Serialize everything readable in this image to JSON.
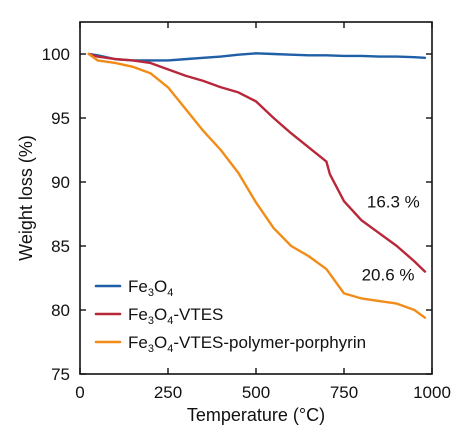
{
  "chart_data": {
    "type": "line",
    "title": "",
    "xlabel": "Temperature (°C)",
    "ylabel": "Weight loss (%)",
    "xlim": [
      0,
      1000
    ],
    "ylim": [
      75,
      102.5
    ],
    "xticks": [
      0,
      250,
      500,
      750,
      1000
    ],
    "yticks": [
      75,
      80,
      85,
      90,
      95,
      100
    ],
    "grid": false,
    "legend_placement": "bottom-left",
    "series": [
      {
        "name": "Fe3O4",
        "legend_parts": [
          {
            "text": "Fe",
            "sub": false
          },
          {
            "text": "3",
            "sub": true
          },
          {
            "text": "O",
            "sub": false
          },
          {
            "text": "4",
            "sub": true
          }
        ],
        "color": "#1f5fa8",
        "x": [
          25,
          50,
          100,
          150,
          200,
          250,
          300,
          350,
          400,
          450,
          500,
          550,
          600,
          650,
          700,
          750,
          800,
          850,
          900,
          950,
          980
        ],
        "y": [
          100.0,
          99.9,
          99.6,
          99.5,
          99.5,
          99.5,
          99.6,
          99.7,
          99.8,
          99.95,
          100.05,
          100.0,
          99.95,
          99.9,
          99.9,
          99.85,
          99.85,
          99.8,
          99.8,
          99.75,
          99.7
        ]
      },
      {
        "name": "Fe3O4-VTES",
        "legend_parts": [
          {
            "text": "Fe",
            "sub": false
          },
          {
            "text": "3",
            "sub": true
          },
          {
            "text": "O",
            "sub": false
          },
          {
            "text": "4",
            "sub": true
          },
          {
            "text": "-VTES",
            "sub": false
          }
        ],
        "color": "#b8283a",
        "x": [
          25,
          50,
          100,
          150,
          200,
          250,
          300,
          350,
          400,
          450,
          500,
          550,
          600,
          650,
          700,
          710,
          750,
          800,
          850,
          900,
          950,
          980
        ],
        "y": [
          100.0,
          99.8,
          99.6,
          99.5,
          99.3,
          98.8,
          98.3,
          97.9,
          97.4,
          97.0,
          96.3,
          95.0,
          93.8,
          92.7,
          91.6,
          90.6,
          88.5,
          87.0,
          86.0,
          85.0,
          83.8,
          83.0
        ]
      },
      {
        "name": "Fe3O4-VTES-polymer-porphyrin",
        "legend_parts": [
          {
            "text": "Fe",
            "sub": false
          },
          {
            "text": "3",
            "sub": true
          },
          {
            "text": "O",
            "sub": false
          },
          {
            "text": "4",
            "sub": true
          },
          {
            "text": "-VTES-polymer-porphyrin",
            "sub": false
          }
        ],
        "color": "#f28c18",
        "x": [
          25,
          50,
          100,
          150,
          200,
          250,
          300,
          350,
          400,
          450,
          500,
          550,
          600,
          650,
          700,
          750,
          800,
          850,
          900,
          950,
          980
        ],
        "y": [
          100.0,
          99.5,
          99.3,
          99.0,
          98.5,
          97.4,
          95.7,
          94.0,
          92.5,
          90.7,
          88.4,
          86.4,
          85.0,
          84.2,
          83.2,
          81.3,
          80.9,
          80.7,
          80.5,
          80.0,
          79.4
        ]
      }
    ],
    "annotations": [
      {
        "text": "16.3 %",
        "x": 815,
        "y": 88.0
      },
      {
        "text": "20.6 %",
        "x": 800,
        "y": 82.3
      }
    ]
  }
}
